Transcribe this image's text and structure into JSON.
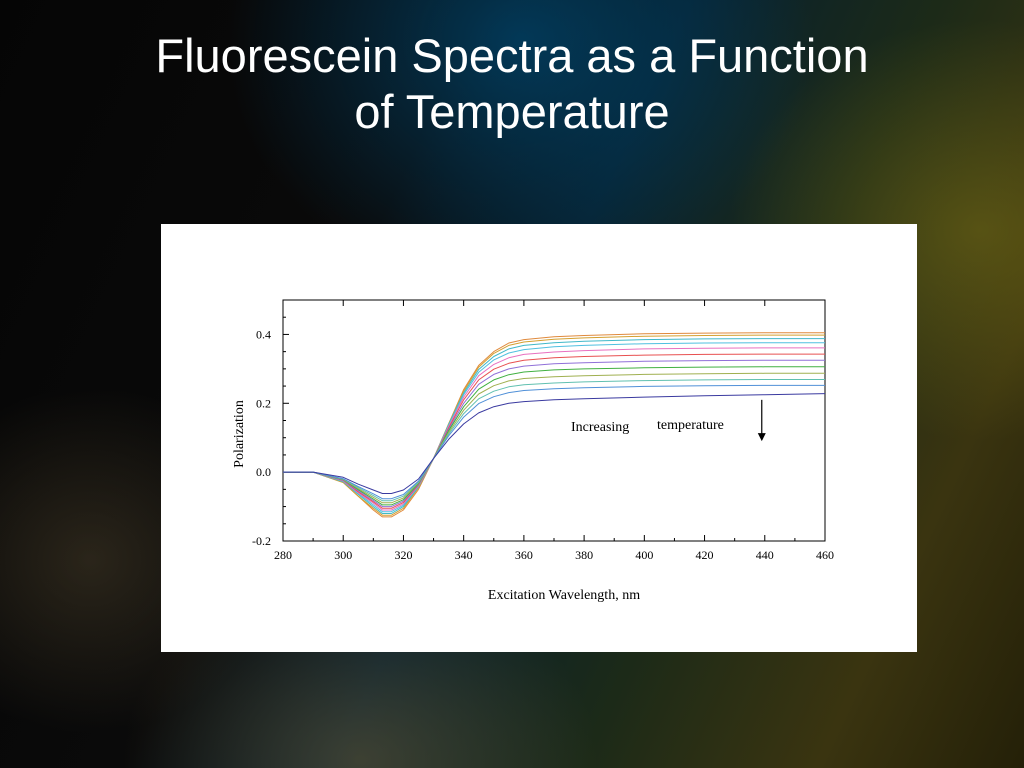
{
  "slide": {
    "title_line1": "Fluorescein Spectra as a Function",
    "title_line2": "of Temperature"
  },
  "chart_data": {
    "type": "line",
    "xlabel": "Excitation Wavelength, nm",
    "ylabel": "Polarization",
    "xlim": [
      280,
      460
    ],
    "ylim": [
      -0.2,
      0.5
    ],
    "x_ticks": [
      280,
      300,
      320,
      340,
      360,
      380,
      400,
      420,
      440,
      460
    ],
    "x_tick_labels": [
      "280",
      "300",
      "320",
      "340",
      "360",
      "380",
      "400",
      "420",
      "440",
      "460"
    ],
    "y_ticks": [
      -0.2,
      0.0,
      0.2,
      0.4
    ],
    "y_tick_labels": [
      "-0.2",
      "0.0",
      "0.2",
      "0.4"
    ],
    "grid": false,
    "annotation": {
      "word1": "Increasing",
      "word2": "temperature",
      "arrow": "down",
      "x": 439,
      "y_from": 0.21,
      "y_to": 0.09
    },
    "x": [
      280,
      290,
      300,
      305,
      310,
      313,
      316,
      320,
      325,
      330,
      335,
      340,
      345,
      350,
      355,
      360,
      370,
      380,
      400,
      420,
      440,
      460
    ],
    "series": [
      {
        "color": "#e08a3c",
        "values": [
          0.0,
          0.0,
          -0.03,
          -0.07,
          -0.11,
          -0.13,
          -0.13,
          -0.11,
          -0.05,
          0.04,
          0.14,
          0.24,
          0.31,
          0.35,
          0.375,
          0.385,
          0.393,
          0.397,
          0.402,
          0.404,
          0.405,
          0.405
        ]
      },
      {
        "color": "#d4a030",
        "values": [
          0.0,
          0.0,
          -0.03,
          -0.07,
          -0.105,
          -0.125,
          -0.125,
          -0.105,
          -0.045,
          0.04,
          0.14,
          0.235,
          0.305,
          0.345,
          0.368,
          0.378,
          0.386,
          0.39,
          0.395,
          0.397,
          0.398,
          0.398
        ]
      },
      {
        "color": "#40b8c8",
        "values": [
          0.0,
          0.0,
          -0.028,
          -0.065,
          -0.1,
          -0.12,
          -0.12,
          -0.1,
          -0.043,
          0.04,
          0.138,
          0.23,
          0.298,
          0.336,
          0.358,
          0.368,
          0.376,
          0.38,
          0.385,
          0.387,
          0.388,
          0.388
        ]
      },
      {
        "color": "#50c0e0",
        "values": [
          0.0,
          0.0,
          -0.026,
          -0.062,
          -0.095,
          -0.115,
          -0.115,
          -0.096,
          -0.041,
          0.04,
          0.135,
          0.225,
          0.29,
          0.326,
          0.346,
          0.356,
          0.364,
          0.368,
          0.373,
          0.375,
          0.376,
          0.376
        ]
      },
      {
        "color": "#e870c0",
        "values": [
          0.0,
          0.0,
          -0.025,
          -0.06,
          -0.09,
          -0.11,
          -0.11,
          -0.092,
          -0.039,
          0.04,
          0.132,
          0.218,
          0.28,
          0.313,
          0.332,
          0.342,
          0.349,
          0.353,
          0.358,
          0.36,
          0.361,
          0.361
        ]
      },
      {
        "color": "#e85050",
        "values": [
          0.0,
          0.0,
          -0.024,
          -0.057,
          -0.086,
          -0.105,
          -0.105,
          -0.088,
          -0.037,
          0.04,
          0.128,
          0.21,
          0.268,
          0.299,
          0.316,
          0.325,
          0.332,
          0.336,
          0.34,
          0.342,
          0.343,
          0.343
        ]
      },
      {
        "color": "#9070d8",
        "values": [
          0.0,
          0.0,
          -0.023,
          -0.054,
          -0.082,
          -0.1,
          -0.1,
          -0.084,
          -0.035,
          0.04,
          0.124,
          0.2,
          0.255,
          0.284,
          0.3,
          0.308,
          0.315,
          0.318,
          0.322,
          0.324,
          0.325,
          0.325
        ]
      },
      {
        "color": "#40b040",
        "values": [
          0.0,
          0.0,
          -0.022,
          -0.051,
          -0.078,
          -0.095,
          -0.095,
          -0.08,
          -0.033,
          0.04,
          0.12,
          0.19,
          0.241,
          0.268,
          0.283,
          0.291,
          0.297,
          0.3,
          0.303,
          0.305,
          0.306,
          0.306
        ]
      },
      {
        "color": "#a0b050",
        "values": [
          0.0,
          0.0,
          -0.021,
          -0.048,
          -0.073,
          -0.089,
          -0.089,
          -0.075,
          -0.031,
          0.04,
          0.115,
          0.18,
          0.227,
          0.251,
          0.265,
          0.272,
          0.277,
          0.28,
          0.284,
          0.286,
          0.287,
          0.287
        ]
      },
      {
        "color": "#60c0b0",
        "values": [
          0.0,
          0.0,
          -0.02,
          -0.045,
          -0.068,
          -0.083,
          -0.083,
          -0.07,
          -0.029,
          0.04,
          0.11,
          0.17,
          0.213,
          0.235,
          0.248,
          0.254,
          0.259,
          0.262,
          0.266,
          0.268,
          0.269,
          0.269
        ]
      },
      {
        "color": "#5090d8",
        "values": [
          0.0,
          0.0,
          -0.019,
          -0.042,
          -0.063,
          -0.077,
          -0.077,
          -0.065,
          -0.026,
          0.04,
          0.105,
          0.16,
          0.199,
          0.219,
          0.231,
          0.237,
          0.242,
          0.245,
          0.249,
          0.251,
          0.252,
          0.252
        ]
      },
      {
        "color": "#3a3aa0",
        "values": [
          0.0,
          0.0,
          -0.015,
          -0.035,
          -0.052,
          -0.062,
          -0.062,
          -0.052,
          -0.02,
          0.04,
          0.095,
          0.14,
          0.172,
          0.19,
          0.2,
          0.205,
          0.21,
          0.213,
          0.218,
          0.222,
          0.225,
          0.228
        ]
      }
    ]
  }
}
